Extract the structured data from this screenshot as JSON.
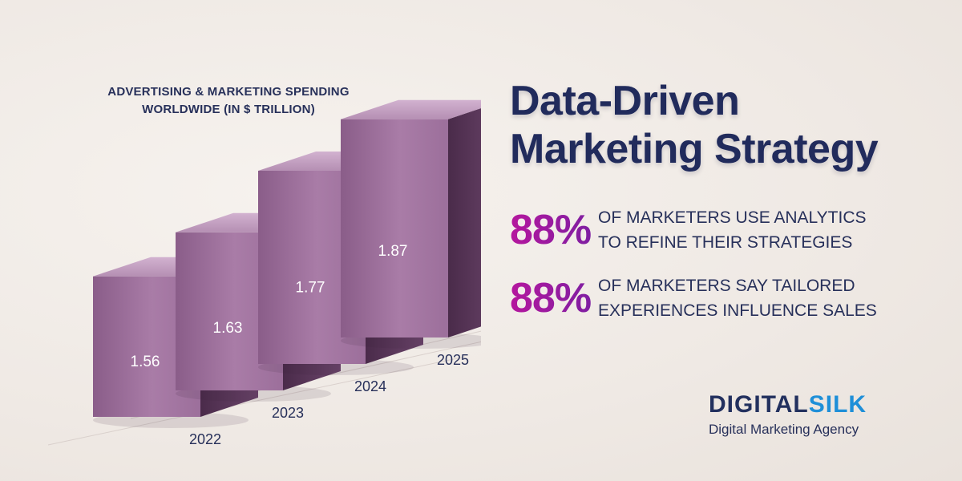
{
  "chart_data": {
    "type": "bar",
    "title": "ADVERTISING & MARKETING SPENDING WORLDWIDE (IN $ TRILLION)",
    "categories": [
      "2022",
      "2023",
      "2024",
      "2025"
    ],
    "values": [
      1.56,
      1.63,
      1.77,
      1.87
    ],
    "value_labels": [
      "1.56",
      "1.63",
      "1.77",
      "1.87"
    ],
    "xlabel": "",
    "ylabel": "",
    "ylim": [
      1.0,
      2.0
    ]
  },
  "headline": {
    "line1": "Data-Driven",
    "line2": "Marketing Strategy"
  },
  "stats": [
    {
      "percent": "88%",
      "line1": "OF MARKETERS USE ANALYTICS",
      "line2": "TO REFINE THEIR STRATEGIES"
    },
    {
      "percent": "88%",
      "line1": "OF MARKETERS SAY TAILORED",
      "line2": "EXPERIENCES INFLUENCE SALES"
    }
  ],
  "brand": {
    "name_part1": "DIGITAL",
    "name_part2": "SILK",
    "tagline": "Digital Marketing Agency"
  },
  "colors": {
    "title_navy": "#212b5c",
    "accent_magenta": "#b5179e",
    "accent_purple": "#7a1fa2",
    "bar_front": "#9a6e99",
    "bar_top": "#c49fc2",
    "bar_side": "#5e3a5e",
    "brand_blue": "#1e8fd8"
  }
}
